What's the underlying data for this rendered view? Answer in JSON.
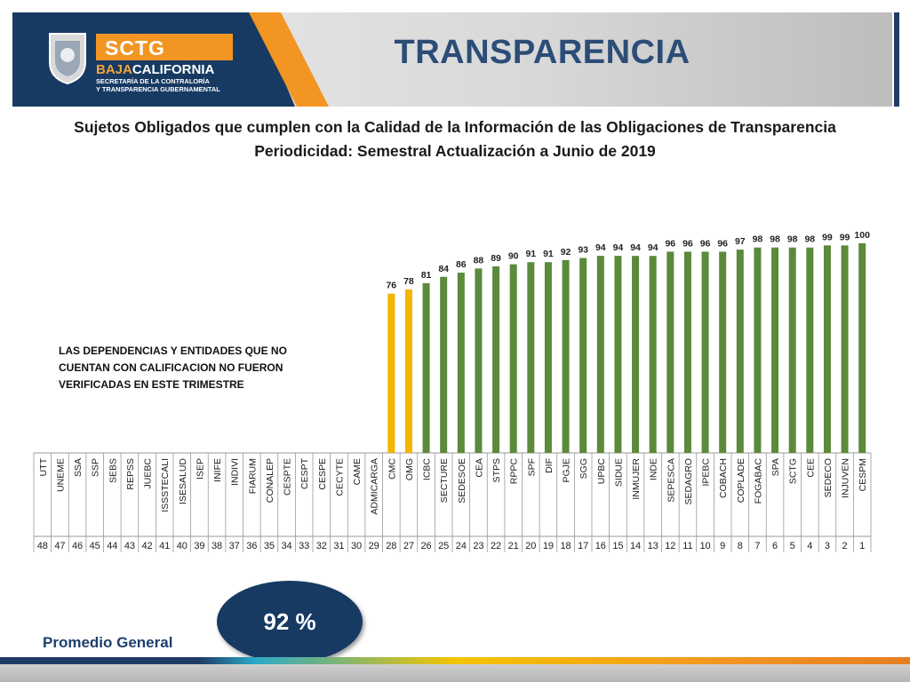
{
  "header": {
    "title": "TRANSPARENCIA",
    "logo_text": "SCTG",
    "logo_brand_part1": "BAJA",
    "logo_brand_part2": "CALIFORNIA",
    "logo_sub_line1": "SECRETARÍA DE LA CONTRALORÍA",
    "logo_sub_line2": "Y TRANSPARENCIA GUBERNAMENTAL"
  },
  "subtitle": {
    "line1": "Sujetos Obligados que cumplen con la Calidad de la Información de las Obligaciones de Transparencia",
    "line2": "Periodicidad: Semestral  Actualización a Junio de 2019"
  },
  "note": {
    "line1": "LAS DEPENDENCIAS Y ENTIDADES QUE NO",
    "line2": "CUENTAN CON CALIFICACION NO FUERON",
    "line3": "VERIFICADAS EN ESTE TRIMESTRE"
  },
  "average": {
    "label": "Promedio General",
    "value": "92 %"
  },
  "colors": {
    "bar_green": "#5a8a3a",
    "bar_yellow": "#f5b400",
    "header_dark": "#173a63",
    "header_orange": "#f29522",
    "title_blue": "#2b4d77"
  },
  "chart_data": {
    "type": "bar",
    "categories": [
      "UTT",
      "UNEME",
      "SSA",
      "SSP",
      "SEBS",
      "REPSS",
      "JUEBC",
      "ISSSTECALI",
      "ISESALUD",
      "ISEP",
      "INIFE",
      "INDIVI",
      "FIARUM",
      "CONALEP",
      "CESPTE",
      "CESPT",
      "CESPE",
      "CECYTE",
      "CAME",
      "ADMICARGA",
      "CMC",
      "OMG",
      "ICBC",
      "SECTURE",
      "SEDESOE",
      "CEA",
      "STPS",
      "RPPC",
      "SPF",
      "DIF",
      "PGJE",
      "SGG",
      "UPBC",
      "SIDUE",
      "INMUJER",
      "INDE",
      "SEPESCA",
      "SEDAGRO",
      "IPEBC",
      "COBACH",
      "COPLADE",
      "FOGABAC",
      "SPA",
      "SCTG",
      "CEE",
      "SEDECO",
      "INJUVEN",
      "CESPM"
    ],
    "ranks": [
      "48",
      "47",
      "46",
      "45",
      "44",
      "43",
      "42",
      "41",
      "40",
      "39",
      "38",
      "37",
      "36",
      "35",
      "34",
      "33",
      "32",
      "31",
      "30",
      "29",
      "28",
      "27",
      "26",
      "25",
      "24",
      "23",
      "22",
      "21",
      "20",
      "19",
      "18",
      "17",
      "16",
      "15",
      "14",
      "13",
      "12",
      "11",
      "10",
      "9",
      "8",
      "7",
      "6",
      "5",
      "4",
      "3",
      "2",
      "1"
    ],
    "values": [
      null,
      null,
      null,
      null,
      null,
      null,
      null,
      null,
      null,
      null,
      null,
      null,
      null,
      null,
      null,
      null,
      null,
      null,
      null,
      null,
      76,
      78,
      81,
      84,
      86,
      88,
      89,
      90,
      91,
      91,
      92,
      93,
      94,
      94,
      94,
      94,
      96,
      96,
      96,
      96,
      97,
      98,
      98,
      98,
      98,
      99,
      99,
      100
    ],
    "bar_colors": [
      "",
      "",
      "",
      "",
      "",
      "",
      "",
      "",
      "",
      "",
      "",
      "",
      "",
      "",
      "",
      "",
      "",
      "",
      "",
      "",
      "yellow",
      "yellow",
      "green",
      "green",
      "green",
      "green",
      "green",
      "green",
      "green",
      "green",
      "green",
      "green",
      "green",
      "green",
      "green",
      "green",
      "green",
      "green",
      "green",
      "green",
      "green",
      "green",
      "green",
      "green",
      "green",
      "green",
      "green",
      "green"
    ],
    "ylim": [
      0,
      100
    ]
  }
}
